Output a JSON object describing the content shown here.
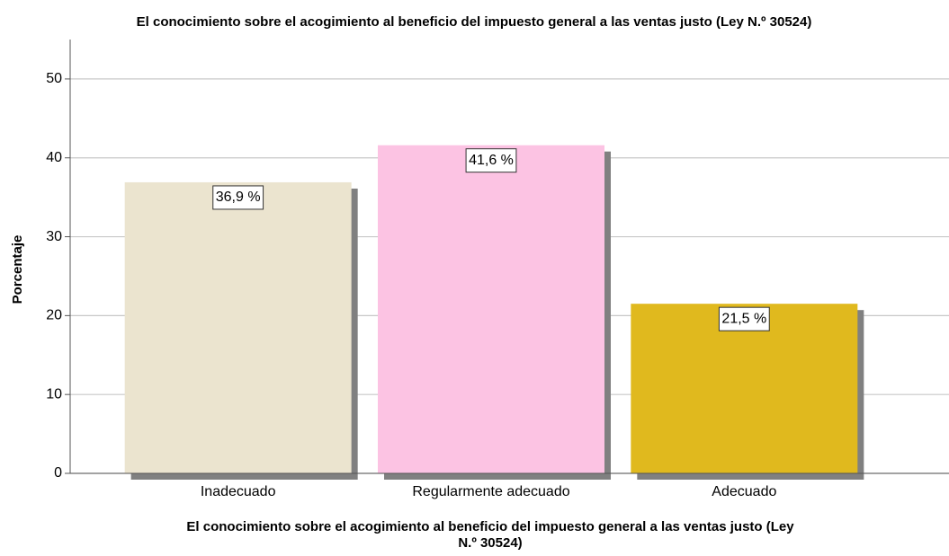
{
  "chart_data": {
    "type": "bar",
    "title": "El conocimiento sobre el acogimiento al beneficio del impuesto general a las ventas justo (Ley N.º 30524)",
    "xlabel": [
      "El conocimiento sobre el acogimiento al beneficio del impuesto general a las ventas justo (Ley",
      "N.º 30524)"
    ],
    "ylabel": "Porcentaje",
    "categories": [
      "Inadecuado",
      "Regularmente adecuado",
      "Adecuado"
    ],
    "values": [
      36.9,
      41.6,
      21.5
    ],
    "value_labels": [
      "36,9 %",
      "41,6 %",
      "21,5 %"
    ],
    "colors": [
      "#ebe4cf",
      "#fcc3e3",
      "#e0b91e"
    ],
    "ylim": [
      0,
      55
    ],
    "yticks": [
      0,
      10,
      20,
      30,
      40,
      50
    ],
    "grid": true
  }
}
